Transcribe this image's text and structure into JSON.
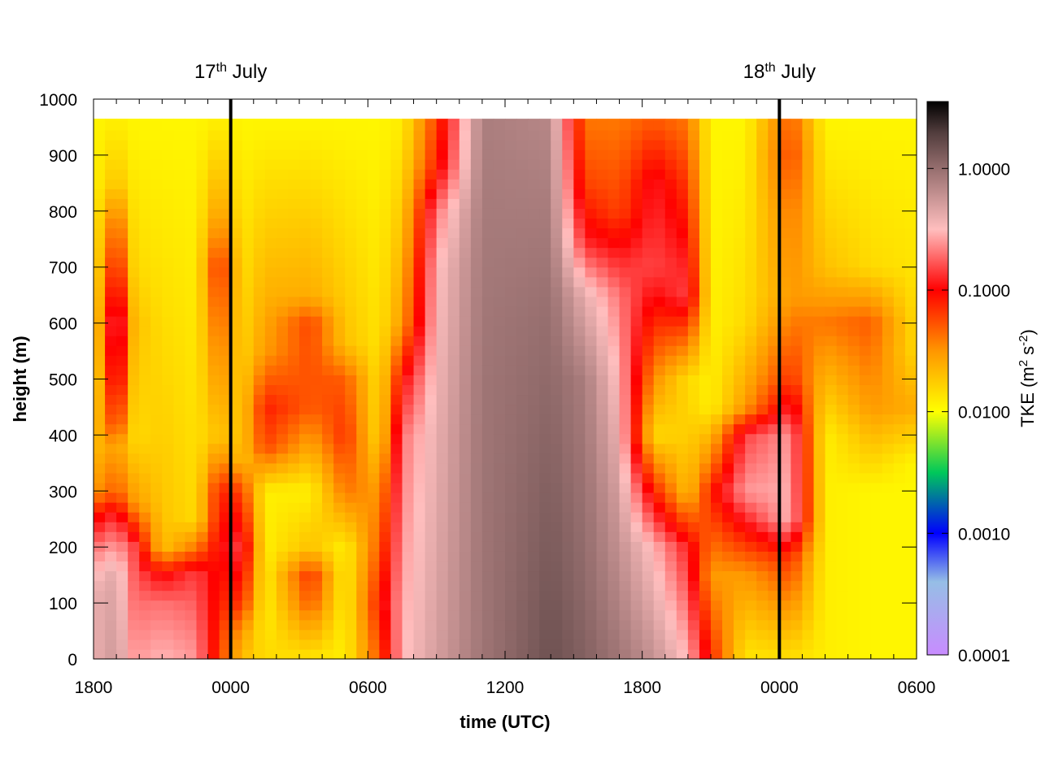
{
  "chart_data": {
    "type": "heatmap",
    "xlabel": "time (UTC)",
    "ylabel": "height (m)",
    "colorbar_label": {
      "base": "TKE (m",
      "sup1": "2",
      "mid": " s",
      "sup2": "-2",
      "end": ")"
    },
    "x_tick_labels": [
      "1800",
      "0000",
      "0600",
      "1200",
      "1800",
      "0000",
      "0600"
    ],
    "x_tick_hours": [
      0,
      6,
      12,
      18,
      24,
      30,
      36
    ],
    "x_range_hours": [
      0,
      36
    ],
    "y_ticks": [
      0,
      100,
      200,
      300,
      400,
      500,
      600,
      700,
      800,
      900,
      1000
    ],
    "y_range": [
      0,
      1000
    ],
    "data_top_m": 965,
    "colorbar_ticks": [
      "0.0001",
      "0.0010",
      "0.0100",
      "0.1000",
      "1.0000"
    ],
    "colorbar_range_log10": [
      -4,
      0.55
    ],
    "colorbar_scale": "log",
    "day_markers": [
      {
        "hours": 6,
        "day": "17",
        "suffix": "th",
        "month": " July"
      },
      {
        "hours": 30,
        "day": "18",
        "suffix": "th",
        "month": " July"
      }
    ],
    "time_step_hours": 0.5,
    "height_step_m": 17.5,
    "tke_description_keyframes": [
      {
        "t": 0,
        "profile": [
          [
            0,
            0.4
          ],
          [
            120,
            0.4
          ],
          [
            200,
            0.2
          ],
          [
            260,
            0.08
          ],
          [
            300,
            0.03
          ],
          [
            500,
            0.012
          ],
          [
            965,
            0.011
          ]
        ]
      },
      {
        "t": 1.0,
        "profile": [
          [
            0,
            0.55
          ],
          [
            150,
            0.45
          ],
          [
            250,
            0.15
          ],
          [
            300,
            0.05
          ],
          [
            380,
            0.03
          ],
          [
            420,
            0.07
          ],
          [
            500,
            0.15
          ],
          [
            600,
            0.25
          ],
          [
            700,
            0.1
          ],
          [
            780,
            0.05
          ],
          [
            850,
            0.02
          ],
          [
            965,
            0.012
          ]
        ]
      },
      {
        "t": 1.8,
        "profile": [
          [
            0,
            0.25
          ],
          [
            200,
            0.15
          ],
          [
            280,
            0.03
          ],
          [
            400,
            0.015
          ],
          [
            600,
            0.02
          ],
          [
            700,
            0.015
          ],
          [
            965,
            0.011
          ]
        ]
      },
      {
        "t": 3.0,
        "profile": [
          [
            0,
            0.3
          ],
          [
            100,
            0.2
          ],
          [
            150,
            0.1
          ],
          [
            200,
            0.02
          ],
          [
            965,
            0.011
          ]
        ]
      },
      {
        "t": 4.5,
        "profile": [
          [
            0,
            0.25
          ],
          [
            150,
            0.15
          ],
          [
            200,
            0.04
          ],
          [
            250,
            0.015
          ],
          [
            965,
            0.011
          ]
        ]
      },
      {
        "t": 5.5,
        "profile": [
          [
            0,
            0.06
          ],
          [
            200,
            0.1
          ],
          [
            300,
            0.08
          ],
          [
            400,
            0.02
          ],
          [
            600,
            0.05
          ],
          [
            700,
            0.08
          ],
          [
            800,
            0.03
          ],
          [
            965,
            0.012
          ]
        ]
      },
      {
        "t": 6.5,
        "profile": [
          [
            0,
            0.02
          ],
          [
            50,
            0.03
          ],
          [
            100,
            0.07
          ],
          [
            200,
            0.15
          ],
          [
            300,
            0.06
          ],
          [
            360,
            0.02
          ],
          [
            965,
            0.011
          ]
        ]
      },
      {
        "t": 7.5,
        "profile": [
          [
            0,
            0.015
          ],
          [
            80,
            0.012
          ],
          [
            300,
            0.012
          ],
          [
            380,
            0.06
          ],
          [
            450,
            0.08
          ],
          [
            550,
            0.03
          ],
          [
            965,
            0.011
          ]
        ]
      },
      {
        "t": 9.5,
        "profile": [
          [
            0,
            0.013
          ],
          [
            100,
            0.05
          ],
          [
            150,
            0.07
          ],
          [
            200,
            0.02
          ],
          [
            300,
            0.012
          ],
          [
            450,
            0.05
          ],
          [
            600,
            0.06
          ],
          [
            650,
            0.025
          ],
          [
            965,
            0.011
          ]
        ]
      },
      {
        "t": 11.0,
        "profile": [
          [
            0,
            0.012
          ],
          [
            200,
            0.012
          ],
          [
            300,
            0.04
          ],
          [
            400,
            0.07
          ],
          [
            500,
            0.05
          ],
          [
            565,
            0.02
          ],
          [
            965,
            0.011
          ]
        ]
      },
      {
        "t": 12.5,
        "profile": [
          [
            0,
            0.05
          ],
          [
            100,
            0.08
          ],
          [
            300,
            0.03
          ],
          [
            400,
            0.015
          ],
          [
            965,
            0.011
          ]
        ]
      },
      {
        "t": 13.5,
        "profile": [
          [
            0,
            0.3
          ],
          [
            200,
            0.25
          ],
          [
            400,
            0.2
          ],
          [
            500,
            0.1
          ],
          [
            600,
            0.03
          ],
          [
            965,
            0.012
          ]
        ]
      },
      {
        "t": 15.0,
        "profile": [
          [
            0,
            0.5
          ],
          [
            400,
            0.4
          ],
          [
            700,
            0.3
          ],
          [
            800,
            0.2
          ],
          [
            880,
            0.08
          ],
          [
            965,
            0.06
          ]
        ]
      },
      {
        "t": 17.0,
        "profile": [
          [
            0,
            0.9
          ],
          [
            500,
            0.9
          ],
          [
            965,
            0.8
          ]
        ]
      },
      {
        "t": 20.0,
        "profile": [
          [
            0,
            1.5
          ],
          [
            600,
            1.0
          ],
          [
            965,
            0.7
          ]
        ]
      },
      {
        "t": 21.5,
        "profile": [
          [
            0,
            1.2
          ],
          [
            500,
            0.8
          ],
          [
            650,
            0.4
          ],
          [
            750,
            0.12
          ],
          [
            850,
            0.06
          ],
          [
            965,
            0.04
          ]
        ]
      },
      {
        "t": 23.0,
        "profile": [
          [
            0,
            0.9
          ],
          [
            300,
            0.5
          ],
          [
            500,
            0.3
          ],
          [
            650,
            0.2
          ],
          [
            720,
            0.12
          ],
          [
            800,
            0.06
          ],
          [
            965,
            0.04
          ]
        ]
      },
      {
        "t": 24.5,
        "profile": [
          [
            0,
            0.6
          ],
          [
            200,
            0.3
          ],
          [
            300,
            0.08
          ],
          [
            400,
            0.015
          ],
          [
            550,
            0.05
          ],
          [
            700,
            0.15
          ],
          [
            850,
            0.12
          ],
          [
            965,
            0.05
          ]
        ]
      },
      {
        "t": 26.0,
        "profile": [
          [
            0,
            0.3
          ],
          [
            200,
            0.12
          ],
          [
            300,
            0.02
          ],
          [
            500,
            0.015
          ],
          [
            650,
            0.15
          ],
          [
            800,
            0.08
          ],
          [
            965,
            0.04
          ]
        ]
      },
      {
        "t": 27.0,
        "profile": [
          [
            0,
            0.08
          ],
          [
            150,
            0.03
          ],
          [
            300,
            0.08
          ],
          [
            350,
            0.04
          ],
          [
            450,
            0.012
          ],
          [
            965,
            0.011
          ]
        ]
      },
      {
        "t": 28.5,
        "profile": [
          [
            0,
            0.013
          ],
          [
            150,
            0.03
          ],
          [
            300,
            0.25
          ],
          [
            400,
            0.15
          ],
          [
            450,
            0.03
          ],
          [
            600,
            0.015
          ],
          [
            965,
            0.011
          ]
        ]
      },
      {
        "t": 30.5,
        "profile": [
          [
            0,
            0.014
          ],
          [
            180,
            0.07
          ],
          [
            250,
            0.3
          ],
          [
            400,
            0.25
          ],
          [
            500,
            0.07
          ],
          [
            650,
            0.03
          ],
          [
            800,
            0.04
          ],
          [
            900,
            0.06
          ],
          [
            965,
            0.05
          ]
        ]
      },
      {
        "t": 32.0,
        "profile": [
          [
            0,
            0.012
          ],
          [
            200,
            0.012
          ],
          [
            400,
            0.012
          ],
          [
            600,
            0.04
          ],
          [
            700,
            0.02
          ],
          [
            965,
            0.011
          ]
        ]
      },
      {
        "t": 34.0,
        "profile": [
          [
            0,
            0.011
          ],
          [
            300,
            0.011
          ],
          [
            450,
            0.03
          ],
          [
            600,
            0.05
          ],
          [
            700,
            0.015
          ],
          [
            965,
            0.011
          ]
        ]
      },
      {
        "t": 36.0,
        "profile": [
          [
            0,
            0.011
          ],
          [
            350,
            0.011
          ],
          [
            450,
            0.025
          ],
          [
            550,
            0.015
          ],
          [
            965,
            0.011
          ]
        ]
      }
    ]
  }
}
